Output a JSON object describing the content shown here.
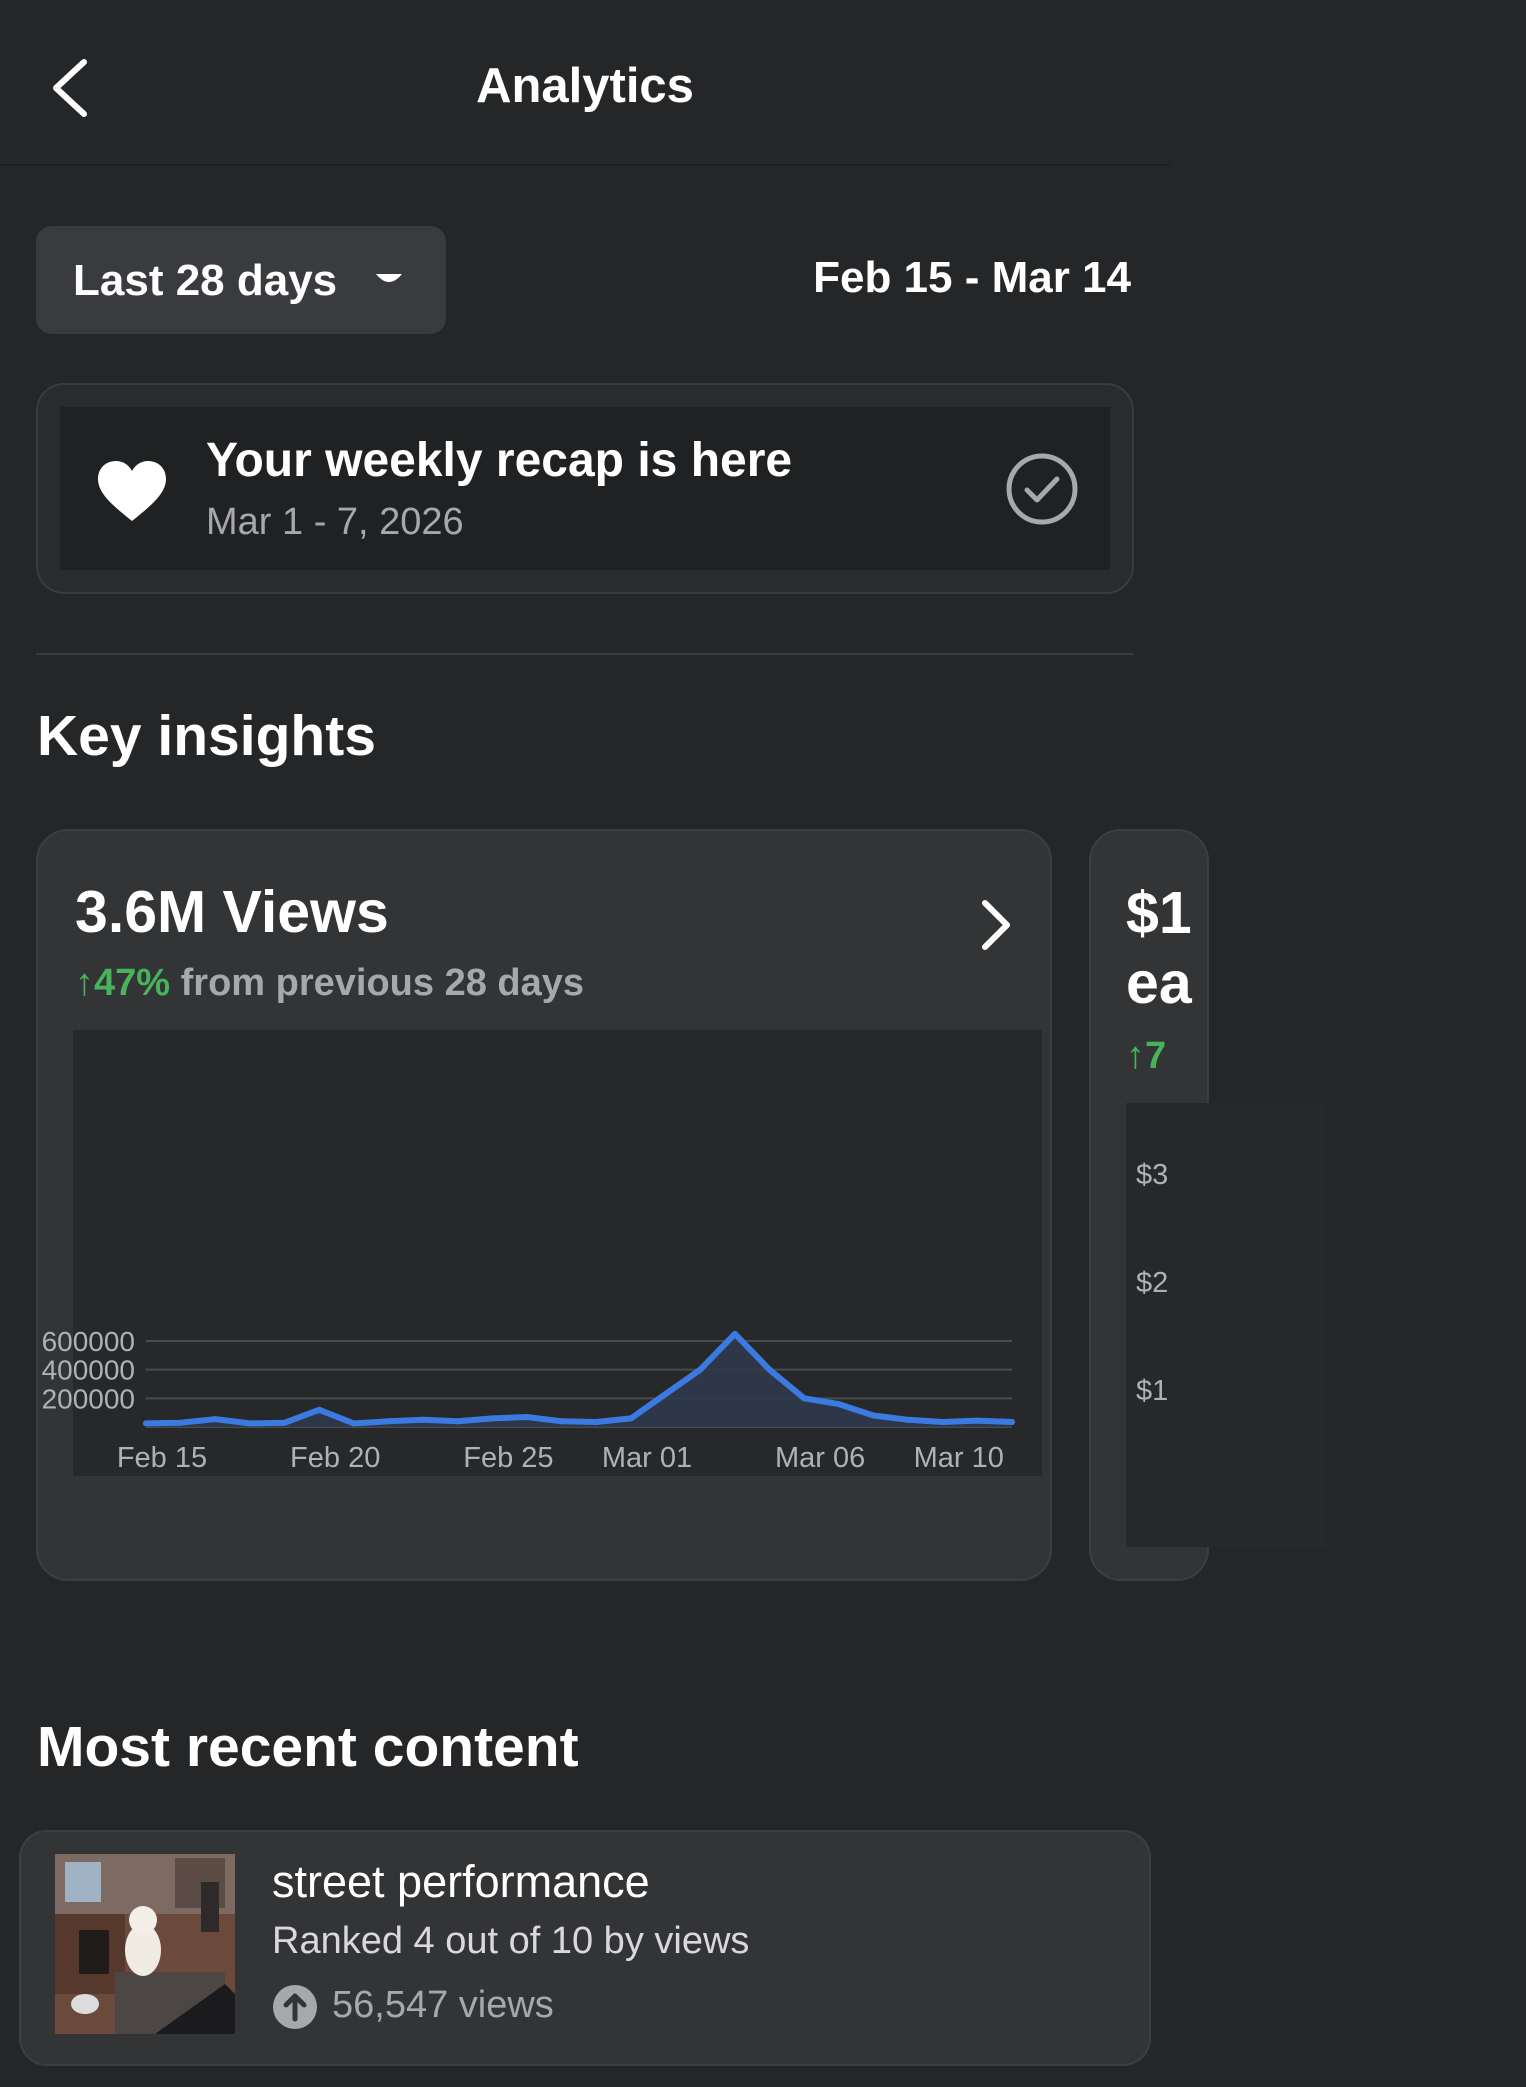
{
  "header": {
    "title": "Analytics",
    "back_icon": "chevron-left-icon"
  },
  "range": {
    "selector_label": "Last 28 days",
    "date_range": "Feb 15 - Mar 14"
  },
  "recap": {
    "title": "Your weekly recap is here",
    "subtitle": "Mar 1 - 7, 2026",
    "icon": "heart-icon",
    "status_icon": "check-circle-icon"
  },
  "sections": {
    "key_insights": "Key insights",
    "most_recent": "Most recent content"
  },
  "insights": [
    {
      "title": "3.6M Views",
      "delta_arrow": "↑",
      "delta_pct": "47%",
      "delta_text": "from previous 28 days",
      "accent_color": "#48b35a"
    },
    {
      "title": "$1",
      "title_line2": "ea",
      "delta_text": "↑7",
      "ticks": [
        "$3",
        "$2",
        "$1"
      ]
    }
  ],
  "chart_data": {
    "type": "area",
    "x_tick_labels": [
      "Feb 15",
      "Feb 20",
      "Feb 25",
      "Mar 01",
      "Mar 06",
      "Mar 10"
    ],
    "y_tick_labels": [
      "600000",
      "400000",
      "200000"
    ],
    "y_ticks": [
      600000,
      400000,
      200000
    ],
    "ylim": [
      0,
      640000
    ],
    "x": [
      "Feb 15",
      "Feb 16",
      "Feb 17",
      "Feb 18",
      "Feb 19",
      "Feb 20",
      "Feb 21",
      "Feb 22",
      "Feb 23",
      "Feb 24",
      "Feb 25",
      "Feb 26",
      "Feb 27",
      "Feb 28",
      "Mar 01",
      "Mar 02",
      "Mar 03",
      "Mar 04",
      "Mar 05",
      "Mar 06",
      "Mar 07",
      "Mar 08",
      "Mar 09",
      "Mar 10",
      "Mar 11",
      "Mar 12"
    ],
    "series": [
      {
        "values": [
          25000,
          30000,
          55000,
          25000,
          30000,
          120000,
          25000,
          40000,
          50000,
          40000,
          60000,
          70000,
          40000,
          35000,
          60000,
          230000,
          400000,
          650000,
          400000,
          200000,
          160000,
          80000,
          50000,
          35000,
          45000,
          35000
        ],
        "color": "#3b7ae0"
      }
    ],
    "grid": true
  },
  "content": {
    "title": "street performance",
    "rank": "Ranked 4 out of 10 by views",
    "views": "56,547 views",
    "views_icon": "arrow-up-circle-icon"
  }
}
